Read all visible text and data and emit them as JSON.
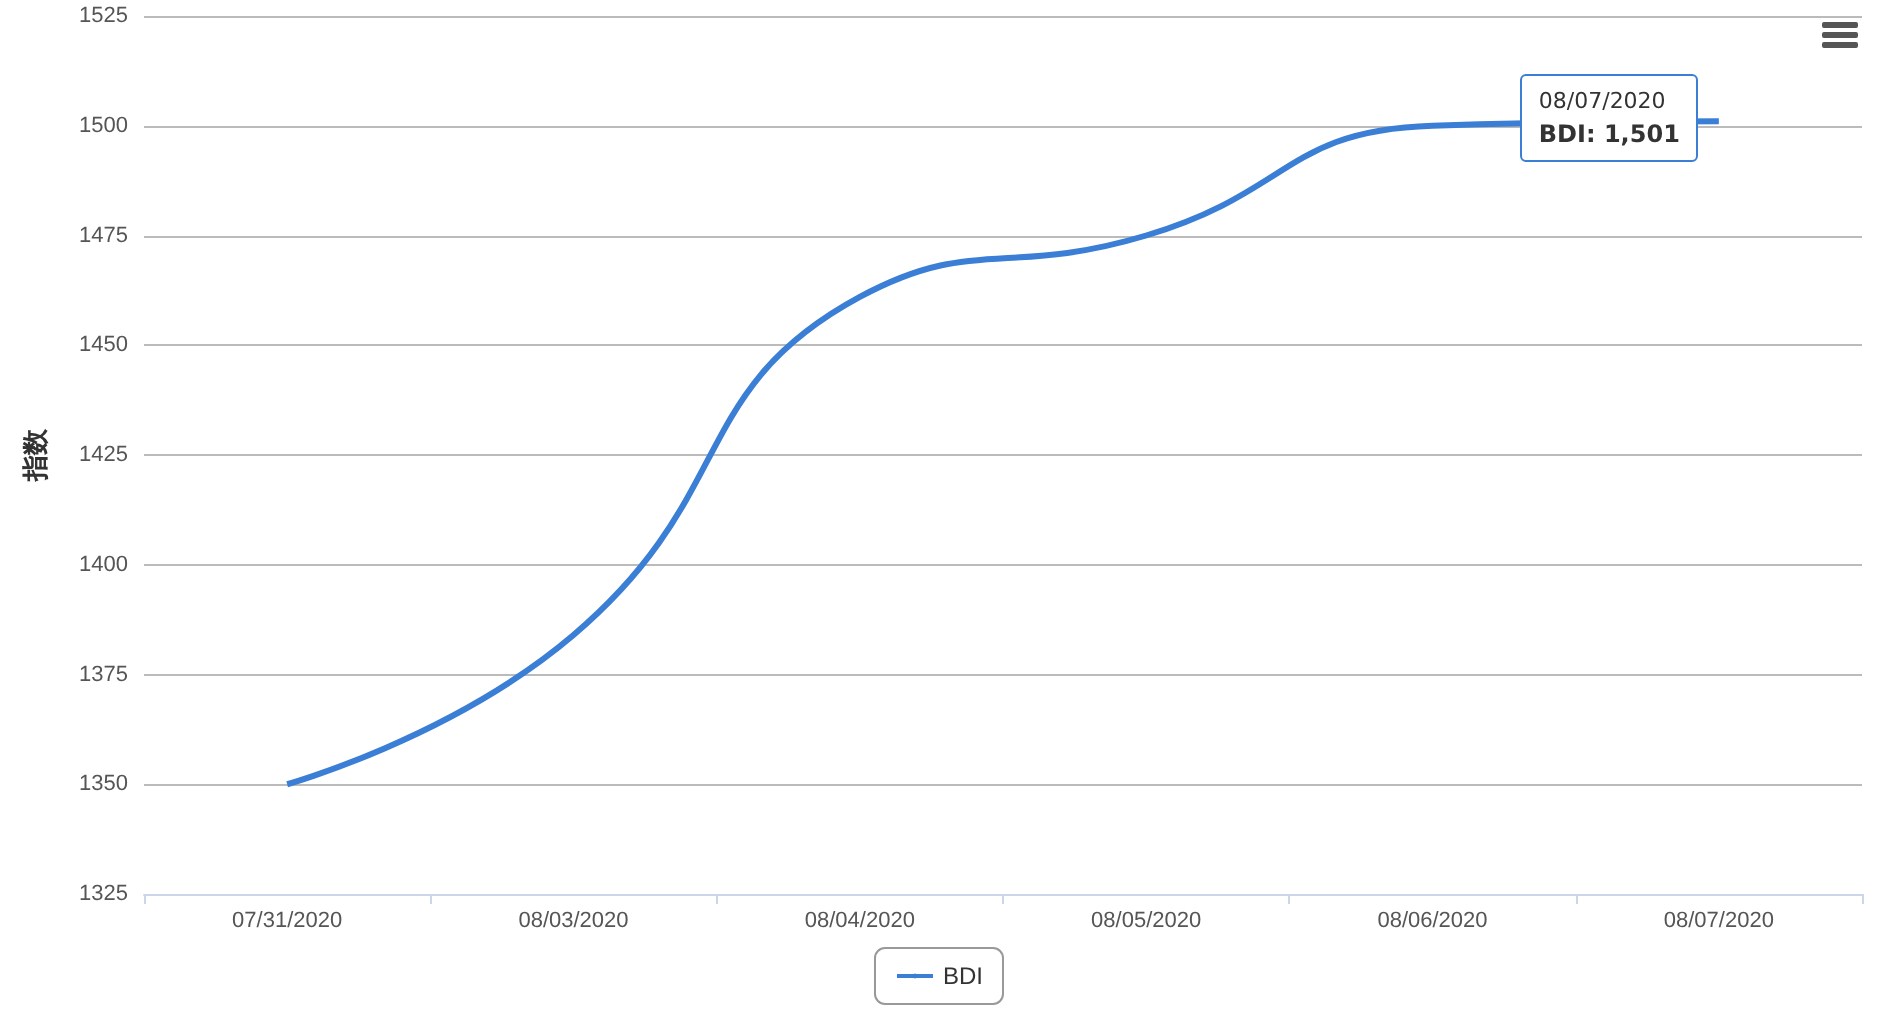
{
  "chart_data": {
    "type": "line",
    "ylabel": "指数",
    "categories": [
      "07/31/2020",
      "08/03/2020",
      "08/04/2020",
      "08/05/2020",
      "08/06/2020",
      "08/07/2020"
    ],
    "series": [
      {
        "name": "BDI",
        "color": "#3a7fd5",
        "values": [
          1350,
          1384,
          1461,
          1475,
          1500,
          1501
        ]
      }
    ],
    "ylim": [
      1325,
      1525
    ],
    "yticks": [
      1325,
      1350,
      1375,
      1400,
      1425,
      1450,
      1475,
      1500,
      1525
    ],
    "grid": "y",
    "legend": "bottom",
    "marker": "none",
    "line_style": "solid",
    "annotations": [
      {
        "text": "08/07/2020\nBDI: 1,501",
        "x": "08/07/2020",
        "y": 1501
      }
    ]
  }
}
